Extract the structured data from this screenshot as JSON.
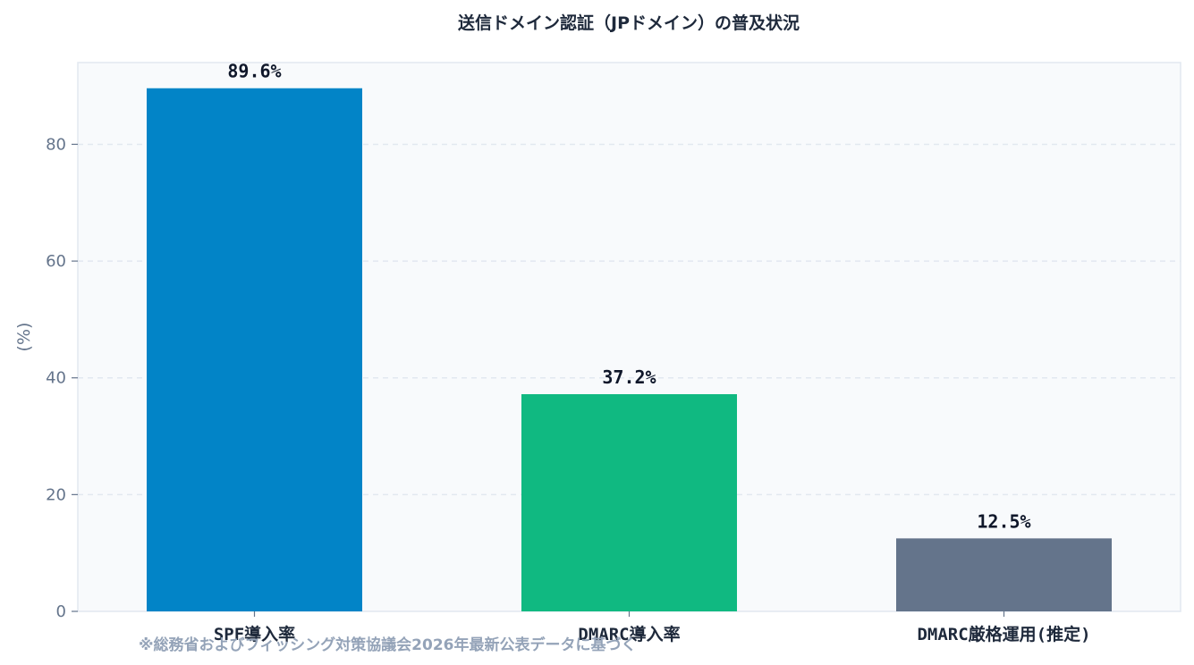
{
  "chart_data": {
    "type": "bar",
    "title": "送信ドメイン認証（JPドメイン）の普及状況",
    "ylabel": "(%)",
    "xlabel": "",
    "categories": [
      "SPF導入率",
      "DMARC導入率",
      "DMARC厳格運用(推定)"
    ],
    "values": [
      89.6,
      37.2,
      12.5
    ],
    "value_labels": [
      "89.6%",
      "37.2%",
      "12.5%"
    ],
    "colors": [
      "#0284c7",
      "#10b981",
      "#64748b"
    ],
    "ylim": [
      0,
      94
    ],
    "yticks": [
      0,
      20,
      40,
      60,
      80
    ],
    "grid": true,
    "legend": "none"
  },
  "footnote": "※総務省およびフィッシング対策協議会2026年最新公表データに基づく",
  "colors": {
    "plot_background": "#f8fafc",
    "grid": "#e2e8f0",
    "axis": "#cbd5e1"
  }
}
